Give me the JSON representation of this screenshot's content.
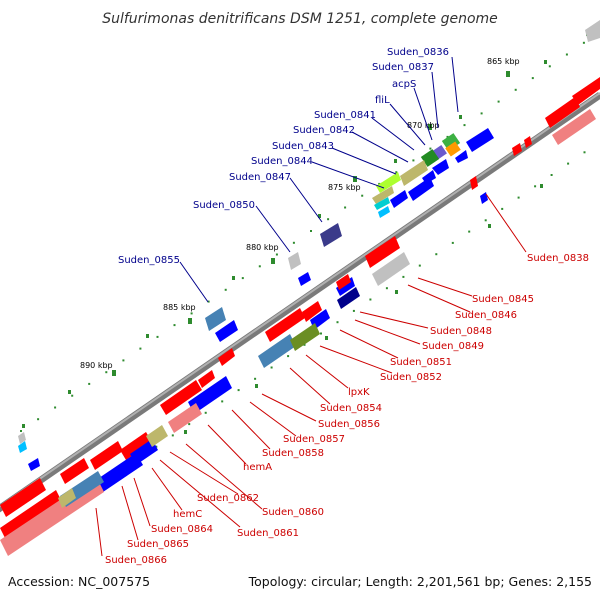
{
  "title": "Sulfurimonas denitrificans DSM 1251, complete genome",
  "footer": {
    "accession": "Accession: NC_007575",
    "summary": "Topology: circular; Length: 2,201,561 bp; Genes: 2,155"
  },
  "colors": {
    "forward_gene": "#ff0000",
    "reverse_gene": "#0000ff",
    "backbone": "#888888",
    "top_label": "#00008b",
    "bottom_label": "#cc0000"
  },
  "ticks": [
    "865 kbp",
    "870 kbp",
    "875 kbp",
    "880 kbp",
    "885 kbp",
    "890 kbp"
  ],
  "top_labels": [
    "Suden_0836",
    "Suden_0837",
    "acpS",
    "fliL",
    "Suden_0841",
    "Suden_0842",
    "Suden_0843",
    "Suden_0844",
    "Suden_0847",
    "Suden_0850",
    "Suden_0855"
  ],
  "bottom_labels": [
    "Suden_0838",
    "Suden_0845",
    "Suden_0846",
    "Suden_0848",
    "Suden_0849",
    "Suden_0851",
    "Suden_0852",
    "lpxK",
    "Suden_0854",
    "Suden_0856",
    "Suden_0857",
    "Suden_0858",
    "hemA",
    "Suden_0862",
    "Suden_0860",
    "hemC",
    "Suden_0861",
    "Suden_0864",
    "Suden_0865",
    "Suden_0866"
  ]
}
